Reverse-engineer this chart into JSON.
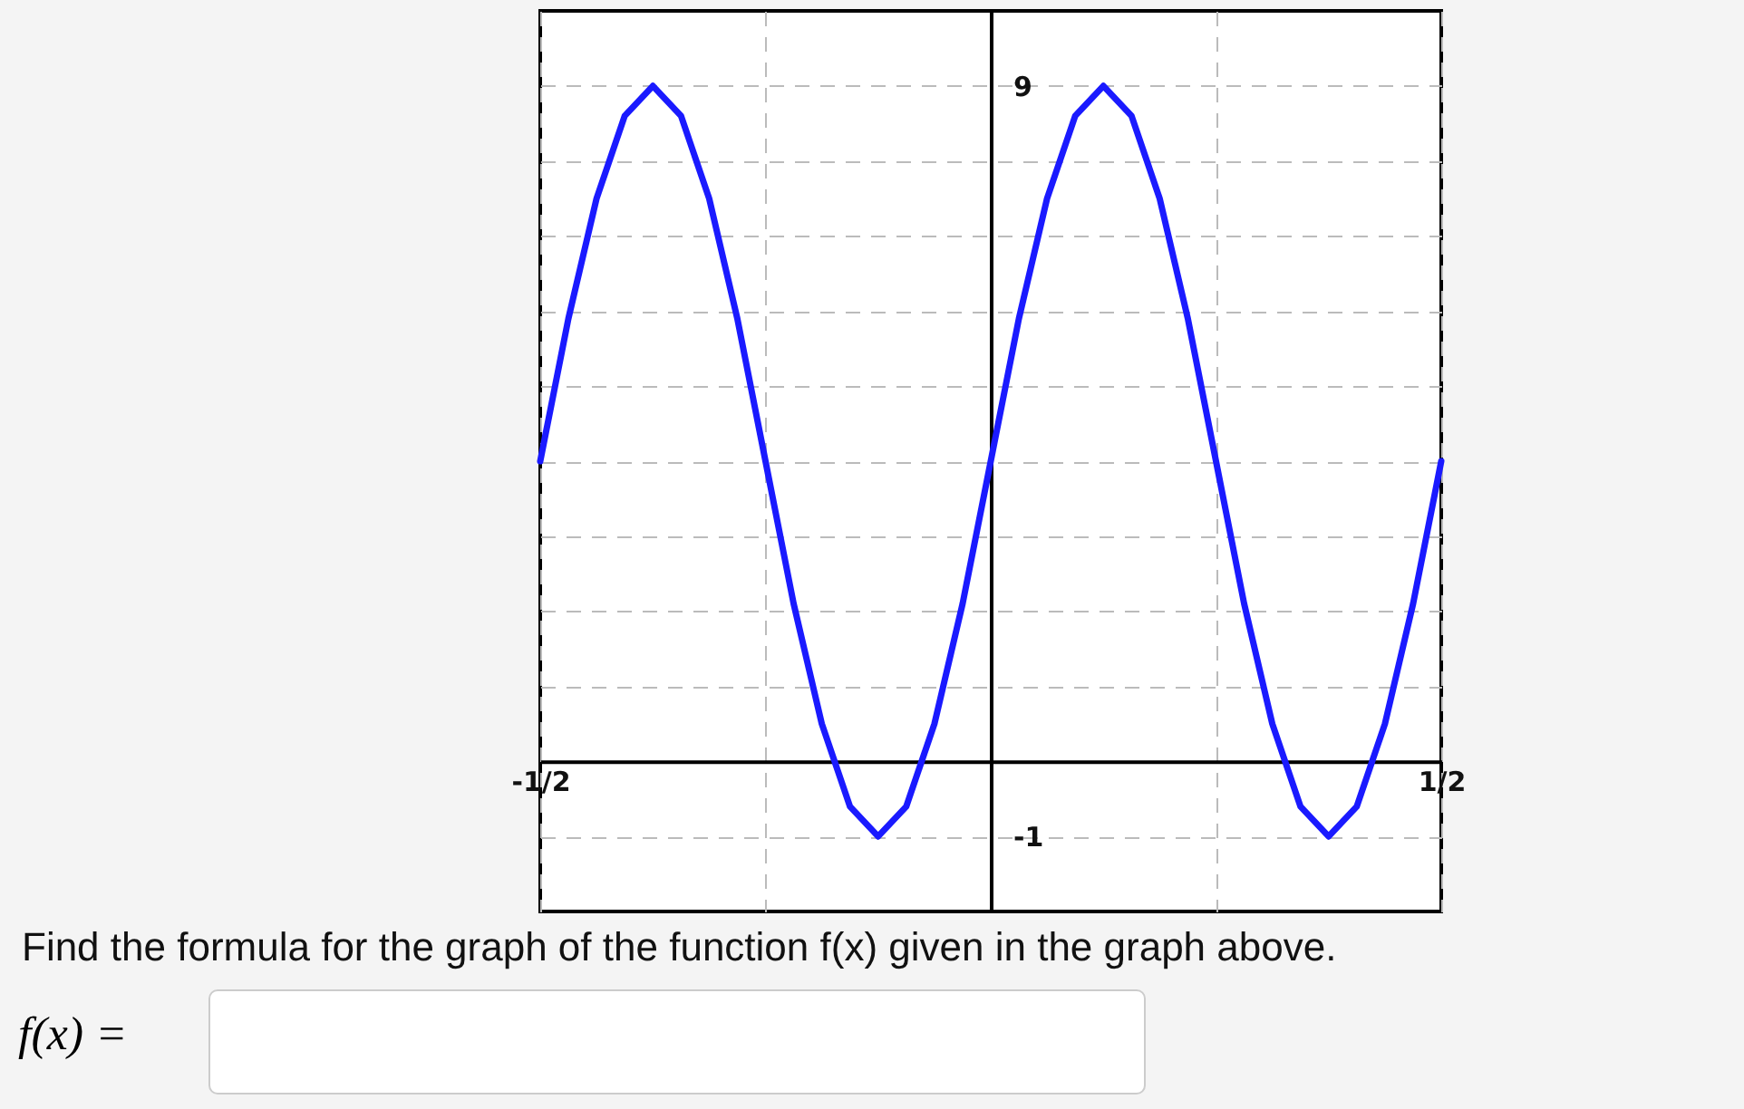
{
  "chart_data": {
    "type": "line",
    "x": [
      -0.5,
      -0.46875,
      -0.4375,
      -0.40625,
      -0.375,
      -0.34375,
      -0.3125,
      -0.28125,
      -0.25,
      -0.21875,
      -0.1875,
      -0.15625,
      -0.125,
      -0.09375,
      -0.0625,
      -0.03125,
      0,
      0.03125,
      0.0625,
      0.09375,
      0.125,
      0.15625,
      0.1875,
      0.21875,
      0.25,
      0.28125,
      0.3125,
      0.34375,
      0.375,
      0.40625,
      0.4375,
      0.46875,
      0.5
    ],
    "series": [
      {
        "color": "#1a1aff",
        "values": [
          4,
          5.9,
          7.5,
          8.6,
          9,
          8.6,
          7.5,
          5.9,
          4,
          2.1,
          0.5,
          -0.6,
          -1,
          -0.6,
          0.5,
          2.1,
          4,
          5.9,
          7.5,
          8.6,
          9,
          8.6,
          7.5,
          5.9,
          4,
          2.1,
          0.5,
          -0.6,
          -1,
          -0.6,
          0.5,
          2.1,
          4
        ]
      }
    ],
    "xlim": [
      -0.5,
      0.5
    ],
    "xticks": [
      {
        "value": -0.5,
        "label": "-1/2"
      },
      {
        "value": -0.25,
        "label": null
      },
      {
        "value": 0.25,
        "label": null
      },
      {
        "value": 0.5,
        "label": "1/2"
      }
    ],
    "ylim": [
      -2,
      10
    ],
    "yticks": [
      {
        "value": -1,
        "label": "-1"
      },
      {
        "value": 1,
        "label": null
      },
      {
        "value": 2,
        "label": null
      },
      {
        "value": 3,
        "label": null
      },
      {
        "value": 4,
        "label": null
      },
      {
        "value": 5,
        "label": null
      },
      {
        "value": 6,
        "label": null
      },
      {
        "value": 7,
        "label": null
      },
      {
        "value": 8,
        "label": null
      },
      {
        "value": 9,
        "label": "9"
      }
    ],
    "grid": true,
    "marker": "none",
    "line_style": "solid",
    "annotations": [
      "Find the formula for the graph of the function f(x) given in the graph above.",
      "f(x) ="
    ]
  }
}
